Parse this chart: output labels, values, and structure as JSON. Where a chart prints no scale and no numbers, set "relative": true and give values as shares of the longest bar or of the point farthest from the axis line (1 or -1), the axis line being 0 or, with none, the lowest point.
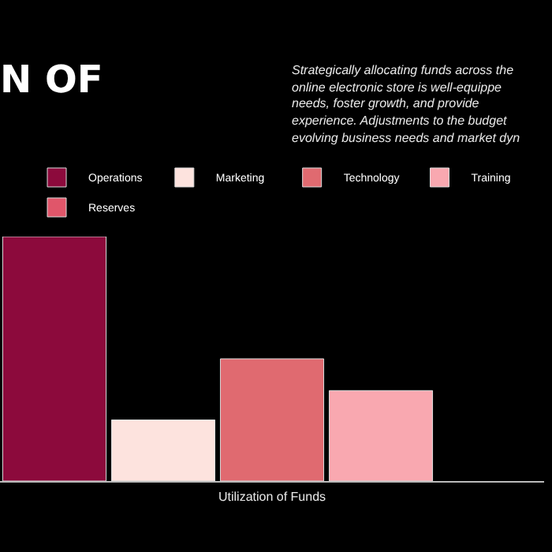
{
  "chart_data": {
    "type": "bar",
    "title": "N OF",
    "xlabel": "Utilization of Funds",
    "relative": true,
    "grid": false,
    "legend": "top",
    "categories": [
      null
    ],
    "annotations": [
      "Strategically allocating funds across the",
      "online electronic store is well-equippe",
      "needs, foster growth, and provide",
      "experience. Adjustments to the budget",
      "evolving business needs and market dyn"
    ],
    "series": [
      {
        "name": "Operations",
        "color": "#8c0a3c",
        "values": [
          1
        ]
      },
      {
        "name": "Marketing",
        "color": "#fde3de",
        "values": [
          0.25
        ]
      },
      {
        "name": "Technology",
        "color": "#e06a70",
        "values": [
          0.5
        ]
      },
      {
        "name": "Training",
        "color": "#f9a8b0",
        "values": [
          0.37
        ]
      },
      {
        "name": "Reserves",
        "color": "#e0566a",
        "values": [
          null
        ]
      }
    ]
  }
}
